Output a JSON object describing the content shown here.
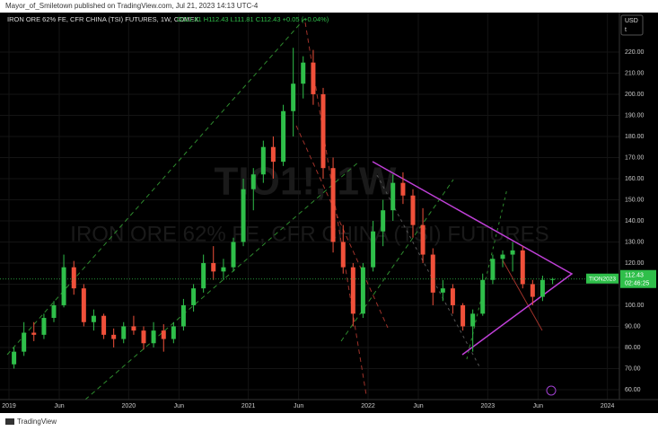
{
  "header": {
    "text": "Mayor_of_Smiletown published on TradingView.com, Jul 21, 2023 14:13 UTC-4"
  },
  "footer": {
    "brand": "TradingView"
  },
  "chart_data": {
    "type": "candlestick",
    "symbol": "IRON ORE 62% FE, CFR CHINA (TSI) FUTURES, 1W, COMEX",
    "ohlc_text": "O111.81 H112.43 L111.81 C112.43 +0.05 (+0.04%)",
    "watermark": "TIO1!, 1W",
    "watermark_name": "IRON ORE 62% FE, CFR CHINA (TSI) FUTURES",
    "currency": "USD",
    "unit": "t",
    "last_price": 112.43,
    "last_price_label": "112.43",
    "countdown": "02:46:25",
    "contract_label": "TION2023",
    "up_color": "#2fbf4a",
    "down_color": "#f0503a",
    "grid": true,
    "x": [
      2019.042,
      2019.125,
      2019.208,
      2019.292,
      2019.375,
      2019.458,
      2019.542,
      2019.625,
      2019.708,
      2019.792,
      2019.875,
      2019.958,
      2020.042,
      2020.125,
      2020.208,
      2020.292,
      2020.375,
      2020.458,
      2020.542,
      2020.625,
      2020.708,
      2020.792,
      2020.875,
      2020.958,
      2021.042,
      2021.125,
      2021.208,
      2021.292,
      2021.375,
      2021.458,
      2021.542,
      2021.625,
      2021.708,
      2021.792,
      2021.875,
      2021.958,
      2022.042,
      2022.125,
      2022.208,
      2022.292,
      2022.375,
      2022.458,
      2022.542,
      2022.625,
      2022.708,
      2022.792,
      2022.875,
      2022.958,
      2023.042,
      2023.125,
      2023.208,
      2023.292,
      2023.375,
      2023.458,
      2023.542
    ],
    "open": [
      72,
      78,
      87,
      86,
      94,
      100,
      118,
      108,
      92,
      95,
      86,
      84,
      90,
      88,
      82,
      88,
      84,
      90,
      100,
      108,
      120,
      116,
      118,
      130,
      155,
      162,
      175,
      168,
      192,
      205,
      215,
      200,
      165,
      130,
      118,
      96,
      118,
      135,
      145,
      158,
      152,
      138,
      124,
      106,
      108,
      100,
      90,
      96,
      112,
      122,
      124,
      126,
      110,
      104,
      112
    ],
    "high": [
      80,
      92,
      92,
      96,
      102,
      124,
      121,
      110,
      98,
      96,
      89,
      92,
      95,
      90,
      92,
      91,
      92,
      103,
      110,
      124,
      128,
      122,
      132,
      160,
      165,
      178,
      180,
      195,
      222,
      218,
      221,
      203,
      170,
      138,
      120,
      120,
      140,
      150,
      162,
      163,
      155,
      146,
      127,
      112,
      110,
      101,
      98,
      115,
      124,
      126,
      130,
      128,
      112,
      114,
      113
    ],
    "low": [
      70,
      76,
      83,
      84,
      92,
      99,
      105,
      90,
      88,
      84,
      80,
      82,
      86,
      79,
      80,
      78,
      82,
      88,
      97,
      106,
      112,
      112,
      116,
      128,
      145,
      158,
      160,
      166,
      180,
      198,
      195,
      160,
      125,
      115,
      90,
      94,
      116,
      128,
      140,
      148,
      132,
      120,
      100,
      102,
      96,
      88,
      78,
      95,
      110,
      118,
      116,
      108,
      100,
      102,
      110
    ],
    "close": [
      78,
      87,
      86,
      94,
      100,
      118,
      108,
      92,
      95,
      86,
      84,
      90,
      88,
      82,
      88,
      84,
      90,
      100,
      108,
      120,
      116,
      118,
      130,
      155,
      162,
      175,
      168,
      192,
      205,
      215,
      200,
      165,
      130,
      118,
      96,
      118,
      135,
      145,
      158,
      152,
      138,
      124,
      106,
      108,
      100,
      90,
      96,
      112,
      122,
      124,
      126,
      110,
      104,
      112,
      112.43
    ],
    "xlim": [
      2018.925,
      2024.1
    ],
    "xticks": [
      {
        "value": 2019.0,
        "label": "2019"
      },
      {
        "value": 2019.42,
        "label": "Jun"
      },
      {
        "value": 2020.0,
        "label": "2020"
      },
      {
        "value": 2020.42,
        "label": "Jun"
      },
      {
        "value": 2021.0,
        "label": "2021"
      },
      {
        "value": 2021.42,
        "label": "Jun"
      },
      {
        "value": 2022.0,
        "label": "2022"
      },
      {
        "value": 2022.42,
        "label": "Jun"
      },
      {
        "value": 2023.0,
        "label": "2023"
      },
      {
        "value": 2023.42,
        "label": "Jun"
      },
      {
        "value": 2024.0,
        "label": "2024"
      }
    ],
    "ylim": [
      55.3,
      238.7
    ],
    "yticks": [
      {
        "value": 60,
        "label": "60.00"
      },
      {
        "value": 70,
        "label": "70.00"
      },
      {
        "value": 80,
        "label": "80.00"
      },
      {
        "value": 90,
        "label": "90.00"
      },
      {
        "value": 100,
        "label": "100.00"
      },
      {
        "value": 110,
        "label": "110.00"
      },
      {
        "value": 120,
        "label": "120.00"
      },
      {
        "value": 130,
        "label": "130.00"
      },
      {
        "value": 140,
        "label": "140.00"
      },
      {
        "value": 150,
        "label": "150.00"
      },
      {
        "value": 160,
        "label": "160.00"
      },
      {
        "value": 170,
        "label": "170.00"
      },
      {
        "value": 180,
        "label": "180.00"
      },
      {
        "value": 190,
        "label": "190.00"
      },
      {
        "value": 200,
        "label": "200.00"
      },
      {
        "value": 210,
        "label": "210.00"
      },
      {
        "value": 220,
        "label": "220.00"
      }
    ]
  }
}
